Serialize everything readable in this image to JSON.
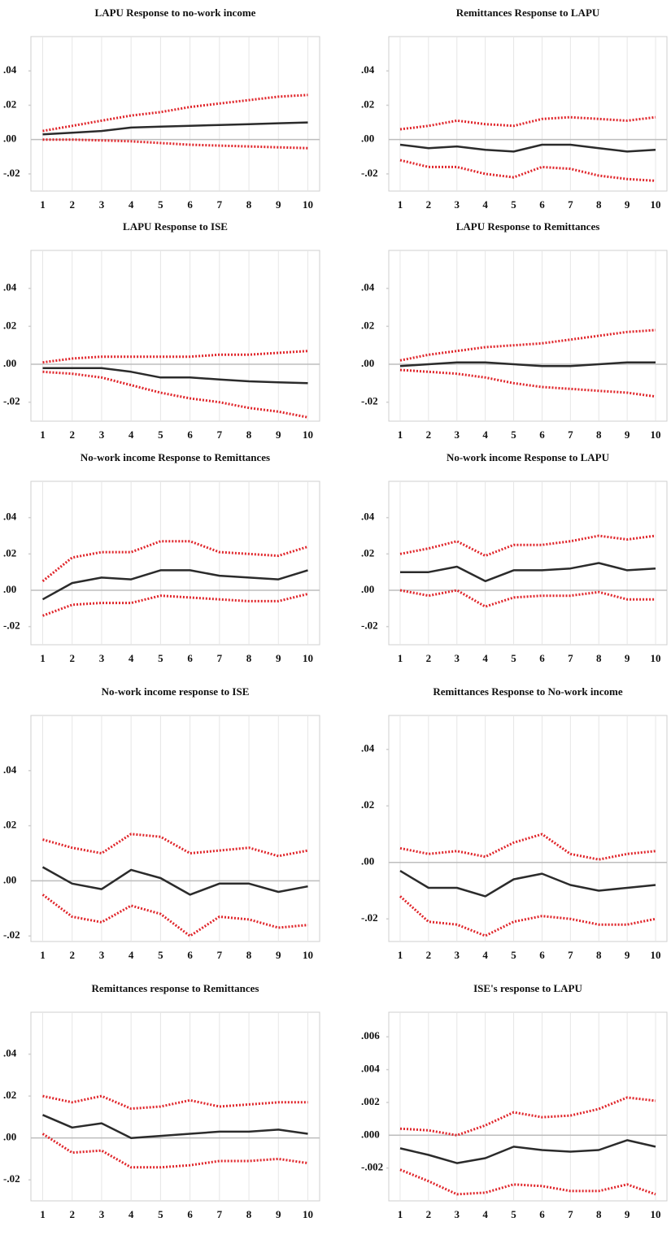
{
  "chart_data": [
    {
      "type": "line",
      "title": "LAPU Response to no-work income",
      "x": [
        1,
        2,
        3,
        4,
        5,
        6,
        7,
        8,
        9,
        10
      ],
      "xlim": [
        0.6,
        10.4
      ],
      "ylim": [
        -0.03,
        0.06
      ],
      "yticks": [
        {
          "value": 0.04,
          "label": ".04"
        },
        {
          "value": 0.02,
          "label": ".02"
        },
        {
          "value": 0,
          "label": ".00"
        },
        {
          "value": -0.02,
          "label": "-.02"
        }
      ],
      "grid": true,
      "series": [
        {
          "color": "#e0262b",
          "dashed": true,
          "values": [
            0.005,
            0.008,
            0.011,
            0.014,
            0.016,
            0.019,
            0.021,
            0.023,
            0.025,
            0.026
          ]
        },
        {
          "color": "#2b2b2b",
          "dashed": false,
          "values": [
            0.003,
            0.004,
            0.005,
            0.007,
            0.0075,
            0.008,
            0.0085,
            0.009,
            0.0095,
            0.01
          ]
        },
        {
          "color": "#e0262b",
          "dashed": true,
          "values": [
            0,
            0,
            -0.0005,
            -0.001,
            -0.002,
            -0.003,
            -0.0035,
            -0.004,
            -0.0045,
            -0.005
          ]
        }
      ]
    },
    {
      "type": "line",
      "title": "Remittances Response to LAPU",
      "x": [
        1,
        2,
        3,
        4,
        5,
        6,
        7,
        8,
        9,
        10
      ],
      "xlim": [
        0.6,
        10.4
      ],
      "ylim": [
        -0.03,
        0.06
      ],
      "yticks": [
        {
          "value": 0.04,
          "label": ".04"
        },
        {
          "value": 0.02,
          "label": ".02"
        },
        {
          "value": 0,
          "label": ".00"
        },
        {
          "value": -0.02,
          "label": "-.02"
        }
      ],
      "grid": true,
      "series": [
        {
          "color": "#e0262b",
          "dashed": true,
          "values": [
            0.006,
            0.008,
            0.011,
            0.009,
            0.008,
            0.012,
            0.013,
            0.012,
            0.011,
            0.013
          ]
        },
        {
          "color": "#2b2b2b",
          "dashed": false,
          "values": [
            -0.003,
            -0.005,
            -0.004,
            -0.006,
            -0.007,
            -0.003,
            -0.003,
            -0.005,
            -0.007,
            -0.006
          ]
        },
        {
          "color": "#e0262b",
          "dashed": true,
          "values": [
            -0.012,
            -0.016,
            -0.016,
            -0.02,
            -0.022,
            -0.016,
            -0.017,
            -0.021,
            -0.023,
            -0.024
          ]
        }
      ]
    },
    {
      "type": "line",
      "title": "LAPU Response to ISE",
      "x": [
        1,
        2,
        3,
        4,
        5,
        6,
        7,
        8,
        9,
        10
      ],
      "xlim": [
        0.6,
        10.4
      ],
      "ylim": [
        -0.03,
        0.06
      ],
      "yticks": [
        {
          "value": 0.04,
          "label": ".04"
        },
        {
          "value": 0.02,
          "label": ".02"
        },
        {
          "value": 0,
          "label": ".00"
        },
        {
          "value": -0.02,
          "label": "-.02"
        }
      ],
      "grid": true,
      "series": [
        {
          "color": "#e0262b",
          "dashed": true,
          "values": [
            0.001,
            0.003,
            0.004,
            0.004,
            0.004,
            0.004,
            0.005,
            0.005,
            0.006,
            0.007
          ]
        },
        {
          "color": "#2b2b2b",
          "dashed": false,
          "values": [
            -0.002,
            -0.002,
            -0.002,
            -0.004,
            -0.007,
            -0.007,
            -0.008,
            -0.009,
            -0.0095,
            -0.01
          ]
        },
        {
          "color": "#e0262b",
          "dashed": true,
          "values": [
            -0.004,
            -0.005,
            -0.007,
            -0.011,
            -0.015,
            -0.018,
            -0.02,
            -0.023,
            -0.025,
            -0.028
          ]
        }
      ]
    },
    {
      "type": "line",
      "title": "LAPU Response to Remittances",
      "x": [
        1,
        2,
        3,
        4,
        5,
        6,
        7,
        8,
        9,
        10
      ],
      "xlim": [
        0.6,
        10.4
      ],
      "ylim": [
        -0.03,
        0.06
      ],
      "yticks": [
        {
          "value": 0.04,
          "label": ".04"
        },
        {
          "value": 0.02,
          "label": ".02"
        },
        {
          "value": 0,
          "label": ".00"
        },
        {
          "value": -0.02,
          "label": "-.02"
        }
      ],
      "grid": true,
      "series": [
        {
          "color": "#e0262b",
          "dashed": true,
          "values": [
            0.002,
            0.005,
            0.007,
            0.009,
            0.01,
            0.011,
            0.013,
            0.015,
            0.017,
            0.018
          ]
        },
        {
          "color": "#2b2b2b",
          "dashed": false,
          "values": [
            -0.001,
            0,
            0.001,
            0.001,
            0,
            -0.001,
            -0.001,
            0,
            0.001,
            0.001
          ]
        },
        {
          "color": "#e0262b",
          "dashed": true,
          "values": [
            -0.003,
            -0.004,
            -0.005,
            -0.007,
            -0.01,
            -0.012,
            -0.013,
            -0.014,
            -0.015,
            -0.017
          ]
        }
      ]
    },
    {
      "type": "line",
      "title": "No-work income Response to Remittances",
      "x": [
        1,
        2,
        3,
        4,
        5,
        6,
        7,
        8,
        9,
        10
      ],
      "xlim": [
        0.6,
        10.4
      ],
      "ylim": [
        -0.03,
        0.06
      ],
      "yticks": [
        {
          "value": 0.04,
          "label": ".04"
        },
        {
          "value": 0.02,
          "label": ".02"
        },
        {
          "value": 0,
          "label": ".00"
        },
        {
          "value": -0.02,
          "label": "-.02"
        }
      ],
      "grid": true,
      "series": [
        {
          "color": "#e0262b",
          "dashed": true,
          "values": [
            0.005,
            0.018,
            0.021,
            0.021,
            0.027,
            0.027,
            0.021,
            0.02,
            0.019,
            0.024
          ]
        },
        {
          "color": "#2b2b2b",
          "dashed": false,
          "values": [
            -0.005,
            0.004,
            0.007,
            0.006,
            0.011,
            0.011,
            0.008,
            0.007,
            0.006,
            0.011
          ]
        },
        {
          "color": "#e0262b",
          "dashed": true,
          "values": [
            -0.014,
            -0.008,
            -0.007,
            -0.007,
            -0.003,
            -0.004,
            -0.005,
            -0.006,
            -0.006,
            -0.002
          ]
        }
      ]
    },
    {
      "type": "line",
      "title": "No-work income Response to LAPU",
      "x": [
        1,
        2,
        3,
        4,
        5,
        6,
        7,
        8,
        9,
        10
      ],
      "xlim": [
        0.6,
        10.4
      ],
      "ylim": [
        -0.03,
        0.06
      ],
      "yticks": [
        {
          "value": 0.04,
          "label": ".04"
        },
        {
          "value": 0.02,
          "label": ".02"
        },
        {
          "value": 0,
          "label": ".00"
        },
        {
          "value": -0.02,
          "label": "-.02"
        }
      ],
      "grid": true,
      "series": [
        {
          "color": "#e0262b",
          "dashed": true,
          "values": [
            0.02,
            0.023,
            0.027,
            0.019,
            0.025,
            0.025,
            0.027,
            0.03,
            0.028,
            0.03
          ]
        },
        {
          "color": "#2b2b2b",
          "dashed": false,
          "values": [
            0.01,
            0.01,
            0.013,
            0.005,
            0.011,
            0.011,
            0.012,
            0.015,
            0.011,
            0.012
          ]
        },
        {
          "color": "#e0262b",
          "dashed": true,
          "values": [
            0,
            -0.003,
            0,
            -0.009,
            -0.004,
            -0.003,
            -0.003,
            -0.001,
            -0.005,
            -0.005
          ]
        }
      ]
    },
    {
      "type": "line",
      "title": "No-work income response to ISE",
      "x": [
        1,
        2,
        3,
        4,
        5,
        6,
        7,
        8,
        9,
        10
      ],
      "xlim": [
        0.6,
        10.4
      ],
      "ylim": [
        -0.022,
        0.06
      ],
      "yticks": [
        {
          "value": 0.04,
          "label": ".04"
        },
        {
          "value": 0.02,
          "label": ".02"
        },
        {
          "value": 0,
          "label": ".00"
        },
        {
          "value": -0.02,
          "label": "-.02"
        }
      ],
      "grid": true,
      "series": [
        {
          "color": "#e0262b",
          "dashed": true,
          "values": [
            0.015,
            0.012,
            0.01,
            0.017,
            0.016,
            0.01,
            0.011,
            0.012,
            0.009,
            0.011
          ]
        },
        {
          "color": "#2b2b2b",
          "dashed": false,
          "values": [
            0.005,
            -0.001,
            -0.003,
            0.004,
            0.001,
            -0.005,
            -0.001,
            -0.001,
            -0.004,
            -0.002
          ]
        },
        {
          "color": "#e0262b",
          "dashed": true,
          "values": [
            -0.005,
            -0.013,
            -0.015,
            -0.009,
            -0.012,
            -0.02,
            -0.013,
            -0.014,
            -0.017,
            -0.016
          ]
        }
      ]
    },
    {
      "type": "line",
      "title": "Remittances Response to No-work income",
      "x": [
        1,
        2,
        3,
        4,
        5,
        6,
        7,
        8,
        9,
        10
      ],
      "xlim": [
        0.6,
        10.4
      ],
      "ylim": [
        -0.028,
        0.052
      ],
      "yticks": [
        {
          "value": 0.04,
          "label": ".04"
        },
        {
          "value": 0.02,
          "label": ".02"
        },
        {
          "value": 0,
          "label": ".00"
        },
        {
          "value": -0.02,
          "label": "-.02"
        }
      ],
      "grid": true,
      "series": [
        {
          "color": "#e0262b",
          "dashed": true,
          "values": [
            0.005,
            0.003,
            0.004,
            0.002,
            0.007,
            0.01,
            0.003,
            0.001,
            0.003,
            0.004
          ]
        },
        {
          "color": "#2b2b2b",
          "dashed": false,
          "values": [
            -0.003,
            -0.009,
            -0.009,
            -0.012,
            -0.006,
            -0.004,
            -0.008,
            -0.01,
            -0.009,
            -0.008
          ]
        },
        {
          "color": "#e0262b",
          "dashed": true,
          "values": [
            -0.012,
            -0.021,
            -0.022,
            -0.026,
            -0.021,
            -0.019,
            -0.02,
            -0.022,
            -0.022,
            -0.02
          ]
        }
      ]
    },
    {
      "type": "line",
      "title": "Remittances response to Remittances",
      "x": [
        1,
        2,
        3,
        4,
        5,
        6,
        7,
        8,
        9,
        10
      ],
      "xlim": [
        0.6,
        10.4
      ],
      "ylim": [
        -0.03,
        0.06
      ],
      "yticks": [
        {
          "value": 0.04,
          "label": ".04"
        },
        {
          "value": 0.02,
          "label": ".02"
        },
        {
          "value": 0,
          "label": ".00"
        },
        {
          "value": -0.02,
          "label": "-.02"
        }
      ],
      "grid": true,
      "series": [
        {
          "color": "#e0262b",
          "dashed": true,
          "values": [
            0.02,
            0.017,
            0.02,
            0.014,
            0.015,
            0.018,
            0.015,
            0.016,
            0.017,
            0.017
          ]
        },
        {
          "color": "#2b2b2b",
          "dashed": false,
          "values": [
            0.011,
            0.005,
            0.007,
            0,
            0.001,
            0.002,
            0.003,
            0.003,
            0.004,
            0.002
          ]
        },
        {
          "color": "#e0262b",
          "dashed": true,
          "values": [
            0.002,
            -0.007,
            -0.006,
            -0.014,
            -0.014,
            -0.013,
            -0.011,
            -0.011,
            -0.01,
            -0.012
          ]
        }
      ]
    },
    {
      "type": "line",
      "title": "ISE's response to LAPU",
      "x": [
        1,
        2,
        3,
        4,
        5,
        6,
        7,
        8,
        9,
        10
      ],
      "xlim": [
        0.6,
        10.4
      ],
      "ylim": [
        -0.004,
        0.0075
      ],
      "yticks": [
        {
          "value": 0.006,
          "label": ".006"
        },
        {
          "value": 0.004,
          "label": ".004"
        },
        {
          "value": 0.002,
          "label": ".002"
        },
        {
          "value": 0,
          "label": ".000"
        },
        {
          "value": -0.002,
          "label": "-.002"
        }
      ],
      "grid": true,
      "series": [
        {
          "color": "#e0262b",
          "dashed": true,
          "values": [
            0.0004,
            0.0003,
            0,
            0.0006,
            0.0014,
            0.0011,
            0.0012,
            0.0016,
            0.0023,
            0.0021
          ]
        },
        {
          "color": "#2b2b2b",
          "dashed": false,
          "values": [
            -0.0008,
            -0.0012,
            -0.0017,
            -0.0014,
            -0.0007,
            -0.0009,
            -0.001,
            -0.0009,
            -0.0003,
            -0.0007
          ]
        },
        {
          "color": "#e0262b",
          "dashed": true,
          "values": [
            -0.0021,
            -0.0028,
            -0.0036,
            -0.0035,
            -0.003,
            -0.0031,
            -0.0034,
            -0.0034,
            -0.003,
            -0.0036
          ]
        }
      ]
    }
  ]
}
